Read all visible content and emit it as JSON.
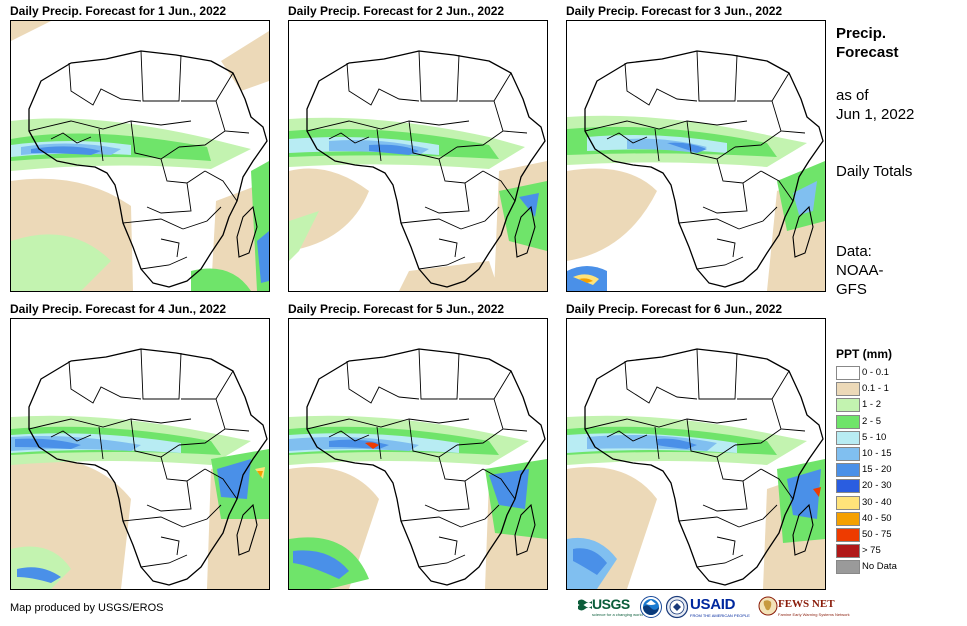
{
  "panels": [
    {
      "title": "Daily Precip. Forecast for 1 Jun., 2022",
      "day": 1
    },
    {
      "title": "Daily Precip. Forecast for 2 Jun., 2022",
      "day": 2
    },
    {
      "title": "Daily Precip. Forecast for 3 Jun., 2022",
      "day": 3
    },
    {
      "title": "Daily Precip. Forecast for 4 Jun., 2022",
      "day": 4
    },
    {
      "title": "Daily Precip. Forecast for 5 Jun., 2022",
      "day": 5
    },
    {
      "title": "Daily Precip. Forecast for 6 Jun., 2022",
      "day": 6
    }
  ],
  "sidebar": {
    "title": "Precip. Forecast",
    "as_of_label": "as of",
    "as_of_date": "Jun 1, 2022",
    "totals": "Daily Totals",
    "data_label": "Data:",
    "data_source": "NOAA-GFS"
  },
  "legend": {
    "title": "PPT (mm)",
    "items": [
      {
        "label": "0 - 0.1",
        "color": "#ffffff"
      },
      {
        "label": "0.1 - 1",
        "color": "#ecd9b8"
      },
      {
        "label": "1 - 2",
        "color": "#c3f3b0"
      },
      {
        "label": "2 - 5",
        "color": "#6fe46a"
      },
      {
        "label": "5 - 10",
        "color": "#b8ecf3"
      },
      {
        "label": "10 - 15",
        "color": "#80bff0"
      },
      {
        "label": "15 - 20",
        "color": "#4a90e8"
      },
      {
        "label": "20 - 30",
        "color": "#2a5de0"
      },
      {
        "label": "30 - 40",
        "color": "#ffe37a"
      },
      {
        "label": "40 - 50",
        "color": "#f5a000"
      },
      {
        "label": "50 - 75",
        "color": "#ee3b00"
      },
      {
        "label": "> 75",
        "color": "#b01818"
      },
      {
        "label": "No Data",
        "color": "#9a9a9a"
      }
    ]
  },
  "footer": {
    "credit": "Map produced by USGS/EROS",
    "logos": {
      "usgs": "USGS",
      "usgs_tagline": "science for a changing world",
      "usaid": "USAID",
      "usaid_tagline": "FROM THE AMERICAN PEOPLE",
      "fews": "FEWS NET",
      "fews_tagline": "Famine Early Warning Systems Network"
    }
  }
}
